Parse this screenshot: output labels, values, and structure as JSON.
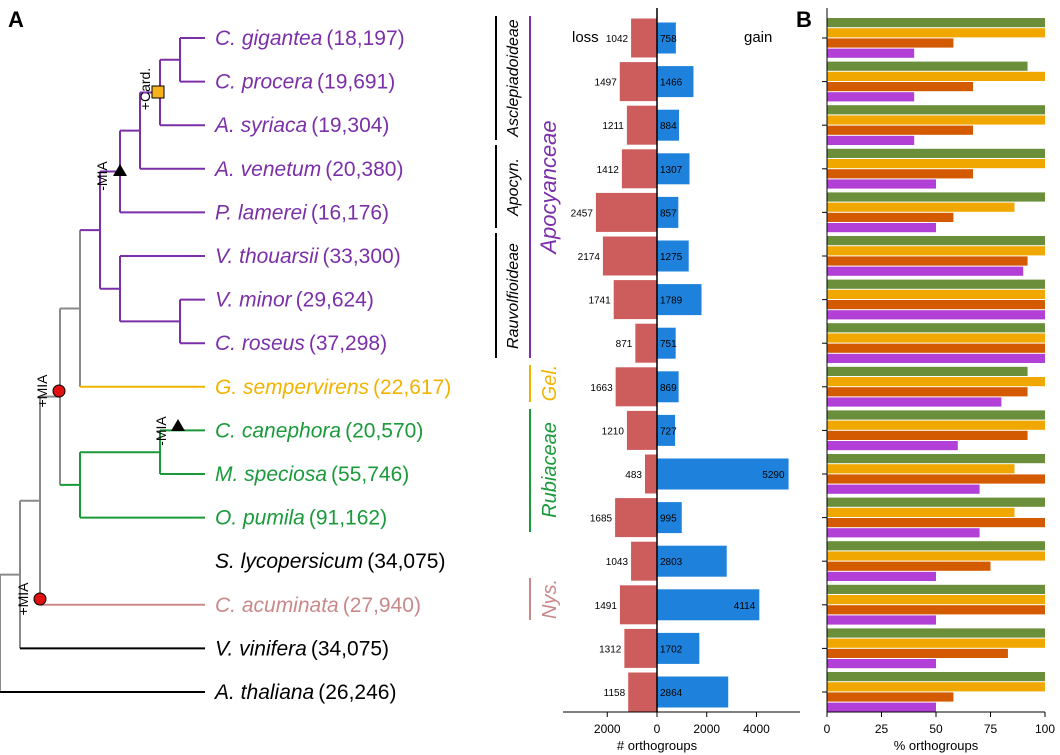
{
  "panels": {
    "a": "A",
    "b": "B"
  },
  "colors": {
    "apocynaceae": "#7B2FA8",
    "gelsemiaceae": "#F0B400",
    "rubiaceae": "#1A9A3A",
    "nyssaceae": "#C9898B",
    "outgroup": "#000000",
    "backbone": "#8A8A8A",
    "loss_bar": "#CD5C5C",
    "gain_bar": "#1E82DC",
    "pct_series": [
      "#6B8E3A",
      "#F0A800",
      "#D45A00",
      "#B23FD6"
    ]
  },
  "tree": {
    "taxa": [
      {
        "name": "C. gigantea",
        "count": "(18,197)",
        "clade": "apocynaceae"
      },
      {
        "name": "C. procera",
        "count": "(19,691)",
        "clade": "apocynaceae"
      },
      {
        "name": "A. syriaca",
        "count": "(19,304)",
        "clade": "apocynaceae"
      },
      {
        "name": "A. venetum",
        "count": "(20,380)",
        "clade": "apocynaceae"
      },
      {
        "name": "P. lamerei",
        "count": "(16,176)",
        "clade": "apocynaceae"
      },
      {
        "name": "V. thouarsii",
        "count": "(33,300)",
        "clade": "apocynaceae"
      },
      {
        "name": "V. minor",
        "count": "(29,624)",
        "clade": "apocynaceae"
      },
      {
        "name": "C. roseus",
        "count": "(37,298)",
        "clade": "apocynaceae"
      },
      {
        "name": "G. sempervirens",
        "count": "(22,617)",
        "clade": "gelsemiaceae"
      },
      {
        "name": "C. canephora",
        "count": "(20,570)",
        "clade": "rubiaceae"
      },
      {
        "name": "M. speciosa",
        "count": "(55,746)",
        "clade": "rubiaceae"
      },
      {
        "name": "O. pumila",
        "count": "(91,162)",
        "clade": "rubiaceae"
      },
      {
        "name": "S. lycopersicum",
        "count": "(34,075)",
        "clade": "outgroup"
      },
      {
        "name": "C. acuminata",
        "count": "(27,940)",
        "clade": "nyssaceae"
      },
      {
        "name": "V. vinifera",
        "count": "(34,075)",
        "clade": "outgroup"
      },
      {
        "name": "A. thaliana",
        "count": "(26,246)",
        "clade": "outgroup"
      }
    ],
    "node_labels": {
      "card": "+Card.",
      "mia_loss_apoc": "-MIA",
      "mia_loss_rub": "-MIA",
      "mia_gain_gent": "+MIA",
      "mia_gain_nys": "+MIA"
    },
    "subfamilies": [
      "Asclepiadoideae",
      "Apocyn.",
      "Rauvolfioideae"
    ],
    "families": {
      "apocynaceae": "Apocyanceae",
      "gelsemiaceae": "Gel.",
      "rubiaceae": "Rubiaceae",
      "nyssaceae": "Nys."
    }
  },
  "chart_data": [
    {
      "type": "bar",
      "orientation": "horizontal",
      "panel": "A",
      "categories": [
        "C. gigantea",
        "C. procera",
        "A. syriaca",
        "A. venetum",
        "P. lamerei",
        "V. thouarsii",
        "V. minor",
        "C. roseus",
        "G. sempervirens",
        "C. canephora",
        "M. speciosa",
        "O. pumila",
        "S. lycopersicum",
        "C. acuminata",
        "V. vinifera",
        "A. thaliana"
      ],
      "series": [
        {
          "name": "loss",
          "values": [
            1042,
            1497,
            1211,
            1412,
            2457,
            2174,
            1741,
            871,
            1663,
            1210,
            483,
            1685,
            1043,
            1491,
            1312,
            1158
          ]
        },
        {
          "name": "gain",
          "values": [
            758,
            1466,
            884,
            1307,
            857,
            1275,
            1789,
            751,
            869,
            727,
            5290,
            995,
            2803,
            4114,
            1702,
            2864
          ]
        }
      ],
      "xlabel": "# orthogroups",
      "xticks": [
        "2000",
        "0",
        "2000",
        "4000"
      ],
      "xlim": [
        -4000,
        5500
      ]
    },
    {
      "type": "bar",
      "orientation": "horizontal",
      "panel": "B",
      "categories": [
        "C. gigantea",
        "C. procera",
        "A. syriaca",
        "A. venetum",
        "P. lamerei",
        "V. thouarsii",
        "V. minor",
        "C. roseus",
        "G. sempervirens",
        "C. canephora",
        "M. speciosa",
        "O. pumila",
        "S. lycopersicum",
        "C. acuminata",
        "V. vinifera",
        "A. thaliana"
      ],
      "series": [
        {
          "values": [
            100,
            92,
            100,
            100,
            100,
            100,
            100,
            100,
            92,
            100,
            100,
            100,
            100,
            100,
            100,
            100
          ]
        },
        {
          "values": [
            100,
            100,
            100,
            100,
            86,
            100,
            100,
            100,
            100,
            100,
            86,
            86,
            100,
            100,
            100,
            100
          ]
        },
        {
          "values": [
            58,
            67,
            67,
            67,
            58,
            92,
            100,
            100,
            92,
            92,
            100,
            100,
            75,
            100,
            83,
            58
          ]
        },
        {
          "values": [
            40,
            40,
            40,
            50,
            50,
            90,
            100,
            100,
            80,
            60,
            70,
            70,
            50,
            50,
            50,
            50
          ]
        }
      ],
      "xlabel": "% orthogroups",
      "xticks": [
        "0",
        "25",
        "50",
        "75",
        "100"
      ],
      "xlim": [
        0,
        100
      ]
    }
  ]
}
